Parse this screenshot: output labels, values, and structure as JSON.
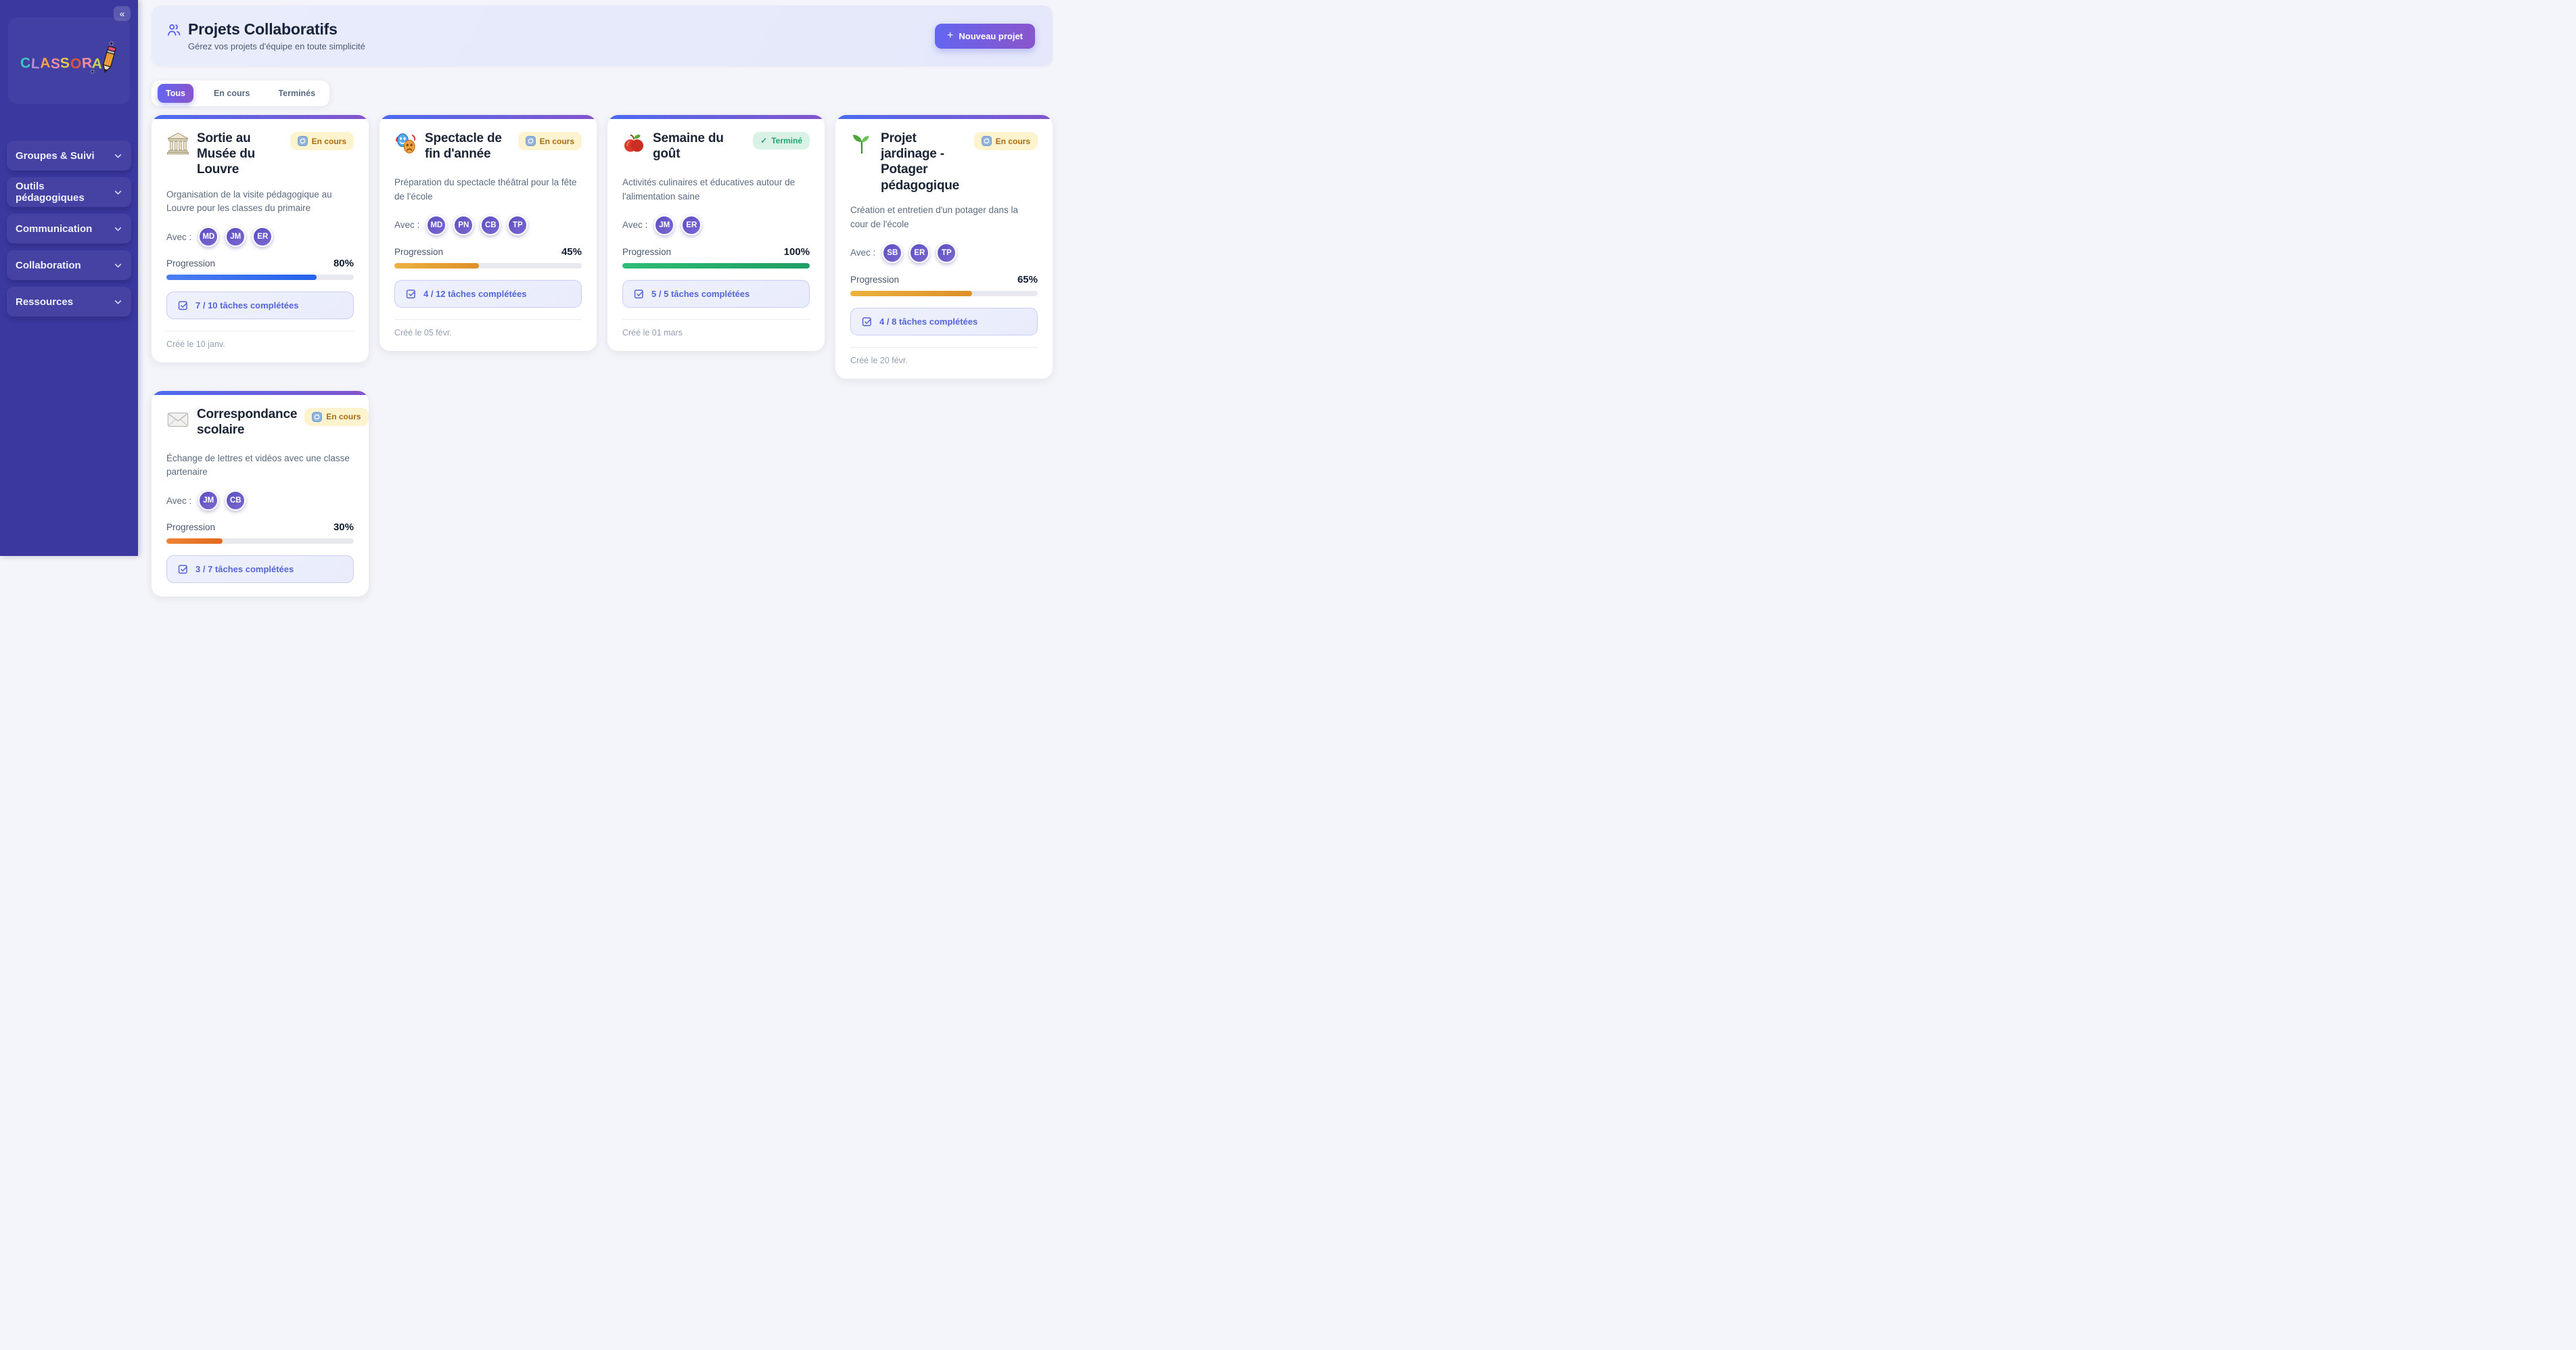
{
  "brand": {
    "name": "CLASSORA",
    "letters": [
      {
        "ch": "C",
        "color": "#3fc8c0"
      },
      {
        "ch": "L",
        "color": "#b48fd9"
      },
      {
        "ch": "A",
        "color": "#f5a14b"
      },
      {
        "ch": "S",
        "color": "#ef8ca4"
      },
      {
        "ch": "S",
        "color": "#e3c94f"
      },
      {
        "ch": "O",
        "color": "#e05538"
      },
      {
        "ch": "R",
        "color": "#f2909e"
      },
      {
        "ch": "A",
        "color": "#c7d44f"
      }
    ],
    "sparkle": "✦"
  },
  "sidebar": {
    "collapse_icon": "«",
    "items": [
      {
        "label": "Groupes & Suivi"
      },
      {
        "label": "Outils pédagogiques"
      },
      {
        "label": "Communication"
      },
      {
        "label": "Collaboration"
      },
      {
        "label": "Ressources"
      }
    ]
  },
  "header": {
    "title": "Projets Collaboratifs",
    "subtitle": "Gérez vos projets d'équipe en toute simplicité",
    "new_project": {
      "plus": "+",
      "label": "Nouveau projet"
    }
  },
  "tabs": [
    {
      "label": "Tous",
      "active": true
    },
    {
      "label": "En cours",
      "active": false
    },
    {
      "label": "Terminés",
      "active": false
    }
  ],
  "cards": [
    {
      "icon": "museum-icon",
      "emoji": "🏛️",
      "title": "Sortie au Musée du Louvre",
      "status": {
        "label": "En cours",
        "type": "in_progress"
      },
      "description": "Organisation de la visite pédagogique au Louvre pour les classes du primaire",
      "with_label": "Avec :",
      "avatars": [
        "MD",
        "JM",
        "ER"
      ],
      "progress": {
        "label": "Progression",
        "display": "80%",
        "value": 80,
        "color_start": "#4c7df2",
        "color_end": "#2563eb"
      },
      "tasks": "7 / 10 tâches complétées",
      "created": "Créé le 10 janv."
    },
    {
      "icon": "theater-masks-icon",
      "emoji": "🎭",
      "title": "Spectacle de fin d'année",
      "status": {
        "label": "En cours",
        "type": "in_progress"
      },
      "description": "Préparation du spectacle théâtral pour la fête de l'école",
      "with_label": "Avec :",
      "avatars": [
        "MD",
        "PN",
        "CB",
        "TP"
      ],
      "progress": {
        "label": "Progression",
        "display": "45%",
        "value": 45,
        "color_start": "#ecb23e",
        "color_end": "#dd8f28"
      },
      "tasks": "4 / 12 tâches complétées",
      "created": "Créé le 05 févr."
    },
    {
      "icon": "apple-icon",
      "emoji": "🍎",
      "title": "Semaine du goût",
      "status": {
        "label": "Terminé",
        "type": "done",
        "icon": "✓"
      },
      "description": "Activités culinaires et éducatives autour de l'alimentation saine",
      "with_label": "Avec :",
      "avatars": [
        "JM",
        "ER"
      ],
      "progress": {
        "label": "Progression",
        "display": "100%",
        "value": 100,
        "color_start": "#2ebd77",
        "color_end": "#1f9e63"
      },
      "tasks": "5 / 5 tâches complétées",
      "created": "Créé le 01 mars"
    },
    {
      "icon": "seedling-icon",
      "emoji": "🌱",
      "title": "Projet jardinage - Potager pédagogique",
      "status": {
        "label": "En cours",
        "type": "in_progress"
      },
      "description": "Création et entretien d'un potager dans la cour de l'école",
      "with_label": "Avec :",
      "avatars": [
        "SB",
        "ER",
        "TP"
      ],
      "progress": {
        "label": "Progression",
        "display": "65%",
        "value": 65,
        "color_start": "#ecb23e",
        "color_end": "#dd8f28"
      },
      "tasks": "4 / 8 tâches complétées",
      "created": "Créé le 20 févr."
    },
    {
      "icon": "envelope-icon",
      "emoji": "✉️",
      "title": "Correspondance scolaire",
      "status": {
        "label": "En cours",
        "type": "in_progress"
      },
      "description": "Échange de lettres et vidéos avec une classe partenaire",
      "with_label": "Avec :",
      "avatars": [
        "JM",
        "CB"
      ],
      "progress": {
        "label": "Progression",
        "display": "30%",
        "value": 30,
        "color_start": "#ee8434",
        "color_end": "#e06a1f"
      },
      "tasks": "3 / 7 tâches complétées"
    }
  ],
  "colors": {
    "sidebar_bg": "#3b38a0",
    "accent_gradient_start": "#6366f1",
    "accent_gradient_end": "#8a55cb",
    "card_top_start": "#4b6bf0",
    "card_top_end": "#8455cc",
    "status_in_progress_bg": "#fdf3cf",
    "status_in_progress_text": "#a86d12",
    "status_done_bg": "#d8f3e6",
    "status_done_text": "#26a172",
    "task_text": "#5565d4"
  }
}
